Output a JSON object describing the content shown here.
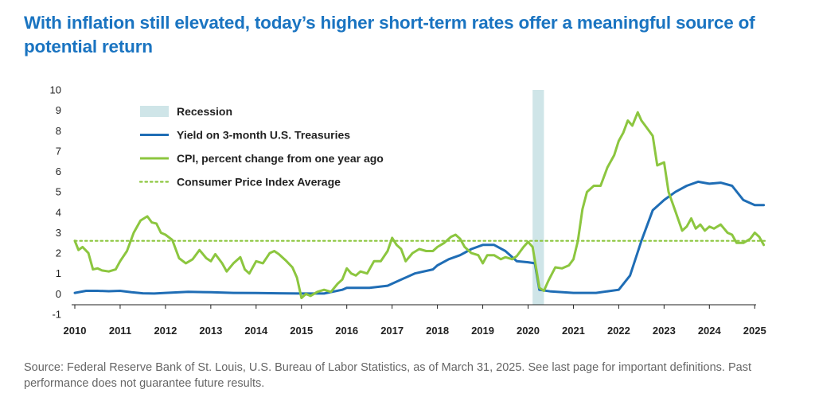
{
  "title": "With inflation still elevated, today’s higher short-term rates offer a meaningful source of potential return",
  "source": "Source: Federal Reserve Bank of St. Louis, U.S. Bureau of Labor Statistics, as of March 31, 2025. See last page for important definitions. Past performance does not guarantee future results.",
  "colors": {
    "title": "#1a74c1",
    "treasury": "#1f6db5",
    "cpi": "#8cc63f",
    "average": "#8cc63f",
    "recession": "#cfe5e8",
    "axis": "#222222",
    "source": "#666666"
  },
  "chart_data": {
    "type": "line",
    "xlim": [
      2010,
      2025.25
    ],
    "ylim": [
      -1,
      10
    ],
    "xticks": [
      "2010",
      "2011",
      "2012",
      "2013",
      "2014",
      "2015",
      "2016",
      "2017",
      "2018",
      "2019",
      "2020",
      "2021",
      "2022",
      "2023",
      "2024",
      "2025"
    ],
    "yticks": [
      "-1",
      "0",
      "1",
      "2",
      "3",
      "4",
      "5",
      "6",
      "7",
      "8",
      "9",
      "10"
    ],
    "grid": false,
    "legend_position": "top-left",
    "legend": [
      {
        "label": "Recession",
        "kind": "band"
      },
      {
        "label": "Yield on 3-month U.S. Treasuries",
        "kind": "line"
      },
      {
        "label": "CPI, percent change from one year ago",
        "kind": "line"
      },
      {
        "label": "Consumer Price Index Average",
        "kind": "dotted"
      }
    ],
    "recession": [
      2020.1,
      2020.35
    ],
    "average": 2.6,
    "series": [
      {
        "name": "Yield on 3-month U.S. Treasuries",
        "x": [
          2010,
          2010.25,
          2010.5,
          2010.75,
          2011,
          2011.25,
          2011.5,
          2011.75,
          2012,
          2012.5,
          2013,
          2013.5,
          2014,
          2014.5,
          2015,
          2015.5,
          2015.9,
          2016,
          2016.5,
          2016.9,
          2017,
          2017.5,
          2017.9,
          2018,
          2018.25,
          2018.5,
          2018.75,
          2019,
          2019.25,
          2019.5,
          2019.75,
          2020,
          2020.15,
          2020.25,
          2020.5,
          2021,
          2021.5,
          2022,
          2022.25,
          2022.5,
          2022.75,
          2023,
          2023.25,
          2023.5,
          2023.75,
          2024,
          2024.25,
          2024.5,
          2024.75,
          2025,
          2025.2
        ],
        "y": [
          0.05,
          0.15,
          0.15,
          0.13,
          0.15,
          0.08,
          0.03,
          0.02,
          0.05,
          0.1,
          0.08,
          0.05,
          0.04,
          0.03,
          0.02,
          0.02,
          0.2,
          0.3,
          0.3,
          0.4,
          0.5,
          1.0,
          1.2,
          1.4,
          1.7,
          1.9,
          2.2,
          2.4,
          2.4,
          2.1,
          1.6,
          1.55,
          1.5,
          0.2,
          0.12,
          0.05,
          0.05,
          0.2,
          0.9,
          2.6,
          4.1,
          4.6,
          5.0,
          5.3,
          5.5,
          5.4,
          5.45,
          5.3,
          4.6,
          4.35,
          4.35
        ]
      },
      {
        "name": "CPI, percent change from one year ago",
        "x": [
          2010,
          2010.08,
          2010.17,
          2010.3,
          2010.4,
          2010.5,
          2010.6,
          2010.75,
          2010.9,
          2011,
          2011.15,
          2011.3,
          2011.45,
          2011.6,
          2011.7,
          2011.8,
          2011.9,
          2012,
          2012.15,
          2012.3,
          2012.45,
          2012.6,
          2012.75,
          2012.9,
          2013,
          2013.1,
          2013.25,
          2013.35,
          2013.5,
          2013.65,
          2013.75,
          2013.85,
          2014,
          2014.15,
          2014.3,
          2014.4,
          2014.5,
          2014.65,
          2014.8,
          2014.9,
          2015,
          2015.1,
          2015.2,
          2015.35,
          2015.5,
          2015.65,
          2015.8,
          2015.9,
          2016,
          2016.1,
          2016.2,
          2016.3,
          2016.45,
          2016.6,
          2016.75,
          2016.9,
          2017,
          2017.1,
          2017.2,
          2017.3,
          2017.45,
          2017.6,
          2017.75,
          2017.9,
          2018,
          2018.15,
          2018.3,
          2018.4,
          2018.5,
          2018.6,
          2018.75,
          2018.9,
          2019,
          2019.1,
          2019.25,
          2019.4,
          2019.5,
          2019.65,
          2019.75,
          2019.9,
          2020,
          2020.1,
          2020.25,
          2020.35,
          2020.45,
          2020.6,
          2020.75,
          2020.9,
          2021,
          2021.1,
          2021.2,
          2021.3,
          2021.45,
          2021.6,
          2021.75,
          2021.9,
          2022,
          2022.1,
          2022.2,
          2022.3,
          2022.42,
          2022.5,
          2022.6,
          2022.75,
          2022.85,
          2023,
          2023.1,
          2023.25,
          2023.4,
          2023.5,
          2023.6,
          2023.7,
          2023.8,
          2023.9,
          2024,
          2024.1,
          2024.25,
          2024.4,
          2024.5,
          2024.6,
          2024.75,
          2024.9,
          2025,
          2025.1,
          2025.2
        ],
        "y": [
          2.6,
          2.15,
          2.3,
          2.0,
          1.2,
          1.25,
          1.15,
          1.1,
          1.2,
          1.6,
          2.1,
          3.0,
          3.6,
          3.8,
          3.5,
          3.45,
          3.0,
          2.9,
          2.65,
          1.75,
          1.5,
          1.7,
          2.15,
          1.75,
          1.6,
          1.95,
          1.5,
          1.1,
          1.5,
          1.8,
          1.2,
          1.0,
          1.6,
          1.5,
          2.0,
          2.1,
          1.95,
          1.65,
          1.3,
          0.8,
          -0.2,
          0.0,
          -0.1,
          0.1,
          0.2,
          0.1,
          0.5,
          0.7,
          1.25,
          1.0,
          0.9,
          1.1,
          1.0,
          1.6,
          1.6,
          2.1,
          2.75,
          2.4,
          2.2,
          1.6,
          2.0,
          2.2,
          2.1,
          2.1,
          2.3,
          2.5,
          2.8,
          2.9,
          2.7,
          2.3,
          2.0,
          1.9,
          1.5,
          1.9,
          1.9,
          1.7,
          1.8,
          1.7,
          1.85,
          2.3,
          2.55,
          2.3,
          0.3,
          0.15,
          0.65,
          1.3,
          1.25,
          1.4,
          1.7,
          2.6,
          4.15,
          5.0,
          5.3,
          5.3,
          6.2,
          6.8,
          7.5,
          7.9,
          8.5,
          8.25,
          8.9,
          8.5,
          8.2,
          7.75,
          6.3,
          6.45,
          5.0,
          4.05,
          3.1,
          3.3,
          3.7,
          3.2,
          3.4,
          3.1,
          3.3,
          3.2,
          3.4,
          3.0,
          2.9,
          2.5,
          2.5,
          2.7,
          3.0,
          2.8,
          2.4
        ]
      }
    ]
  }
}
